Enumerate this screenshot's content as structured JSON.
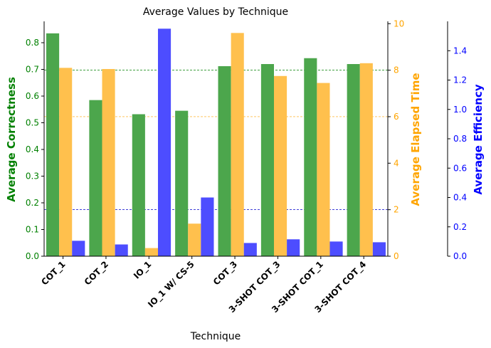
{
  "chart_data": {
    "type": "bar",
    "title": "Average Values by Technique",
    "xlabel": "Technique",
    "categories": [
      "COT_1",
      "COT_2",
      "IO_1",
      "IO_1 W/ CS-5",
      "COT_3",
      "3-SHOT COT_3",
      "3-SHOT COT_1",
      "3-SHOT COT_4"
    ],
    "axes": {
      "left": {
        "label": "Average Correctness",
        "color": "#008000",
        "ylim": [
          0,
          0.88
        ],
        "ticks": [
          "0.0",
          "0.1",
          "0.2",
          "0.3",
          "0.4",
          "0.5",
          "0.6",
          "0.7",
          "0.8"
        ],
        "tick_values": [
          0,
          0.1,
          0.2,
          0.3,
          0.4,
          0.5,
          0.6,
          0.7,
          0.8
        ]
      },
      "right1": {
        "label": "Average Elapsed Time",
        "color": "#FFA500",
        "ylim": [
          0,
          10.1
        ],
        "ticks": [
          "0",
          "2",
          "4",
          "6",
          "8",
          "10"
        ],
        "tick_values": [
          0,
          2,
          4,
          6,
          8,
          10
        ]
      },
      "right2": {
        "label": "Average Efficiency",
        "color": "#0000FF",
        "ylim": [
          0,
          1.6
        ],
        "ticks": [
          "0.0",
          "0.2",
          "0.4",
          "0.6",
          "0.8",
          "1.0",
          "1.2",
          "1.4"
        ],
        "tick_values": [
          0,
          0.2,
          0.4,
          0.6,
          0.8,
          1.0,
          1.2,
          1.4
        ]
      }
    },
    "series": [
      {
        "name": "Average Correctness",
        "axis": "left",
        "color": "#4CA64C",
        "values": [
          0.835,
          0.585,
          0.532,
          0.545,
          0.712,
          0.72,
          0.742,
          0.72
        ]
      },
      {
        "name": "Average Elapsed Time",
        "axis": "right1",
        "color": "#FFC04D",
        "values": [
          8.1,
          8.05,
          0.35,
          1.4,
          9.6,
          7.75,
          7.45,
          8.3
        ]
      },
      {
        "name": "Average Efficiency",
        "axis": "right2",
        "color": "#4D4DFF",
        "values": [
          0.105,
          0.08,
          1.55,
          0.4,
          0.09,
          0.115,
          0.1,
          0.095
        ]
      }
    ],
    "grid": "horizontal dashed lines only at the right axes' 2, 6 and 8 ticks"
  }
}
